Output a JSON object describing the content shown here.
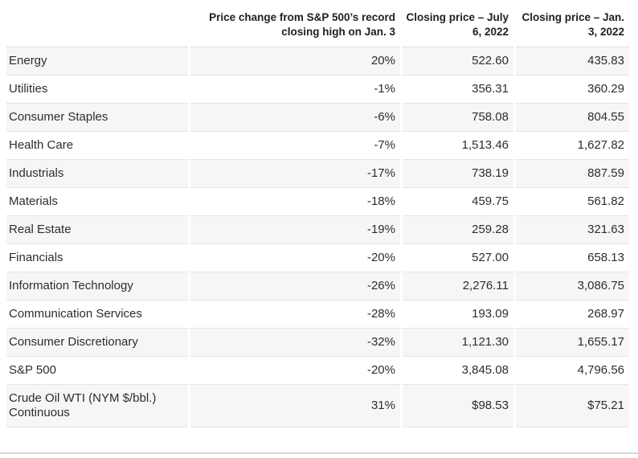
{
  "chart_data": {
    "type": "table",
    "title": "",
    "columns": [
      "",
      "Price change from S&P 500’s record closing high on Jan. 3",
      "Closing price – July 6, 2022",
      "Closing price – Jan. 3, 2022"
    ],
    "rows": [
      {
        "label": "Energy",
        "change": "20%",
        "july6_2022": "522.60",
        "jan3_2022": "435.83"
      },
      {
        "label": "Utilities",
        "change": "-1%",
        "july6_2022": "356.31",
        "jan3_2022": "360.29"
      },
      {
        "label": "Consumer Staples",
        "change": "-6%",
        "july6_2022": "758.08",
        "jan3_2022": "804.55"
      },
      {
        "label": "Health Care",
        "change": "-7%",
        "july6_2022": "1,513.46",
        "jan3_2022": "1,627.82"
      },
      {
        "label": "Industrials",
        "change": "-17%",
        "july6_2022": "738.19",
        "jan3_2022": "887.59"
      },
      {
        "label": "Materials",
        "change": "-18%",
        "july6_2022": "459.75",
        "jan3_2022": "561.82"
      },
      {
        "label": "Real Estate",
        "change": "-19%",
        "july6_2022": "259.28",
        "jan3_2022": "321.63"
      },
      {
        "label": "Financials",
        "change": "-20%",
        "july6_2022": "527.00",
        "jan3_2022": "658.13"
      },
      {
        "label": "Information Technology",
        "change": "-26%",
        "july6_2022": "2,276.11",
        "jan3_2022": "3,086.75"
      },
      {
        "label": "Communication Services",
        "change": "-28%",
        "july6_2022": "193.09",
        "jan3_2022": "268.97"
      },
      {
        "label": "Consumer Discretionary",
        "change": "-32%",
        "july6_2022": "1,121.30",
        "jan3_2022": "1,655.17"
      },
      {
        "label": "S&P 500",
        "change": "-20%",
        "july6_2022": "3,845.08",
        "jan3_2022": "4,796.56"
      },
      {
        "label": "Crude Oil WTI (NYM $/bbl.) Continuous",
        "change": "31%",
        "july6_2022": "$98.53",
        "jan3_2022": "$75.21"
      }
    ],
    "layout": {
      "stripe_rows": "odd",
      "stripe_color": "#f6f6f6",
      "border_color": "#e4e4e4",
      "header_text_color": "#1f1f1f",
      "body_text_color": "#2d2d2d",
      "bottom_divider_color": "#d8d8d8"
    }
  }
}
